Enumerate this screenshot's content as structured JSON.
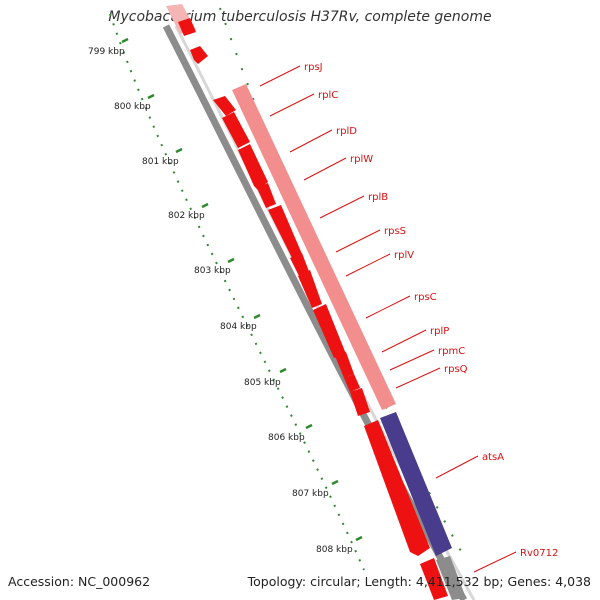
{
  "title": "Mycobacterium tuberculosis H37Rv, complete genome",
  "accession_text": "Accession: NC_000962",
  "topology_text": "Topology: circular; Length: 4,411,532 bp; Genes: 4,038",
  "colors": {
    "background": "#ffffff",
    "backbone": "#8c8c8c",
    "tick": "#2f8a2f",
    "gene_forward": "#ee1111",
    "gene_highlight": "#f28e8e",
    "gene_alt": "#4a3c8c",
    "label": "#d81010"
  },
  "scale_labels": [
    "799 kbp",
    "800 kbp",
    "801 kbp",
    "802 kbp",
    "803 kbp",
    "804 kbp",
    "805 kbp",
    "806 kbp",
    "807 kbp",
    "808 kbp"
  ],
  "gene_labels": [
    "rpsJ",
    "rplC",
    "rplD",
    "rplW",
    "rplB",
    "rpsS",
    "rplV",
    "rpsC",
    "rplP",
    "rpmC",
    "rpsQ",
    "atsA",
    "Rv0712"
  ]
}
